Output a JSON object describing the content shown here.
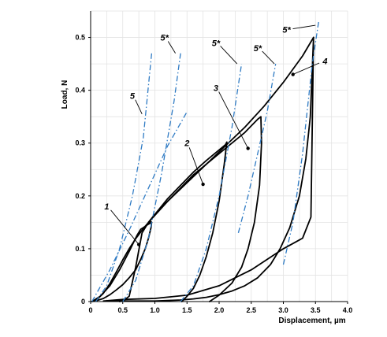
{
  "chart_data": {
    "type": "line",
    "xlabel": "Displacement, µm",
    "ylabel": "Load, N",
    "xlim": [
      0,
      4.0
    ],
    "ylim": [
      0,
      0.55
    ],
    "x_ticks": [
      "0",
      "0.5",
      "1.0",
      "1.5",
      "2.0",
      "2.5",
      "3.0",
      "3.5",
      "4.0"
    ],
    "x_tick_values": [
      0,
      0.5,
      1.0,
      1.5,
      2.0,
      2.5,
      3.0,
      3.5,
      4.0
    ],
    "y_ticks": [
      "0",
      "0.1",
      "0.2",
      "0.3",
      "0.4",
      "0.5"
    ],
    "y_tick_values": [
      0,
      0.1,
      0.2,
      0.3,
      0.4,
      0.5
    ],
    "grid": true,
    "colors": {
      "measured": "#000000",
      "model": "#2f7bc4"
    },
    "series": [
      {
        "kind": "curve",
        "x": [
          0.02,
          0.1,
          0.2,
          0.3,
          0.4,
          0.5,
          0.6,
          0.7,
          0.8,
          0.88,
          0.93,
          0.95,
          0.94,
          0.9,
          0.85,
          0.78,
          0.7,
          0.6,
          0.5,
          0.4,
          0.3,
          0.2,
          0.1,
          0.02
        ],
        "y": [
          0,
          0.004,
          0.016,
          0.034,
          0.056,
          0.079,
          0.1,
          0.119,
          0.135,
          0.147,
          0.152,
          0.15,
          0.14,
          0.12,
          0.1,
          0.08,
          0.06,
          0.045,
          0.032,
          0.022,
          0.013,
          0.006,
          0.002,
          0
        ]
      },
      {
        "kind": "curve",
        "x": [
          0.02,
          0.15,
          0.3,
          0.45,
          0.6,
          0.72,
          0.78,
          0.82,
          0.88,
          0.95
        ],
        "y": [
          0,
          0.01,
          0.03,
          0.06,
          0.095,
          0.125,
          0.137,
          0.14,
          0.145,
          0.15
        ]
      },
      {
        "kind": "curve",
        "x": [
          0.45,
          0.5,
          0.6,
          0.7,
          0.8,
          0.9,
          1.0,
          1.2,
          1.4,
          1.6,
          1.8,
          1.95,
          2.05,
          2.1,
          2.12,
          2.08,
          2.0,
          1.9,
          1.8,
          1.7,
          1.6,
          1.5,
          1.42
        ],
        "y": [
          0,
          0.001,
          0.01,
          0.065,
          0.13,
          0.15,
          0.165,
          0.195,
          0.22,
          0.245,
          0.267,
          0.282,
          0.292,
          0.297,
          0.302,
          0.26,
          0.19,
          0.13,
          0.085,
          0.05,
          0.025,
          0.01,
          0
        ]
      },
      {
        "kind": "curve",
        "x": [
          0.9,
          1.0,
          1.2,
          1.4,
          1.6,
          1.8,
          2.0,
          2.2,
          2.4,
          2.6,
          2.65,
          2.66,
          2.63,
          2.55,
          2.45,
          2.35,
          2.2,
          2.0,
          1.85
        ],
        "y": [
          0.15,
          0.165,
          0.19,
          0.215,
          0.24,
          0.26,
          0.28,
          0.3,
          0.32,
          0.345,
          0.35,
          0.3,
          0.22,
          0.15,
          0.1,
          0.065,
          0.035,
          0.012,
          0
        ]
      },
      {
        "kind": "curve",
        "x": [
          0.2,
          0.5,
          1.0,
          1.5,
          2.0,
          2.5,
          3.0,
          3.3,
          3.43,
          3.47,
          3.42,
          3.35,
          3.25,
          3.1,
          2.95,
          2.8,
          2.6,
          2.4,
          2.2,
          2.0,
          1.8,
          1.6,
          1.4,
          1.2,
          1.0,
          0.8,
          0.5,
          0.2
        ],
        "y": [
          0.001,
          0.004,
          0.006,
          0.012,
          0.03,
          0.06,
          0.1,
          0.12,
          0.16,
          0.5,
          0.35,
          0.27,
          0.2,
          0.14,
          0.1,
          0.07,
          0.045,
          0.03,
          0.02,
          0.013,
          0.008,
          0.005,
          0.003,
          0.002,
          0.001,
          0.001,
          0.001,
          0.001
        ]
      },
      {
        "kind": "curve",
        "x": [
          0.9,
          1.2,
          1.5,
          1.8,
          2.1,
          2.4,
          2.7,
          3.0,
          3.3,
          3.47
        ],
        "y": [
          0.15,
          0.19,
          0.225,
          0.26,
          0.295,
          0.33,
          0.37,
          0.415,
          0.465,
          0.5
        ]
      },
      {
        "kind": "dashdot",
        "x": [
          0.02,
          0.3,
          0.6,
          0.9,
          1.2,
          1.49
        ],
        "y": [
          0,
          0.06,
          0.135,
          0.215,
          0.295,
          0.357
        ]
      },
      {
        "kind": "dashdot",
        "x": [
          0.08,
          0.25,
          0.45,
          0.65,
          0.82,
          0.95
        ],
        "y": [
          0,
          0.03,
          0.1,
          0.2,
          0.31,
          0.47
        ]
      },
      {
        "kind": "dashdot",
        "x": [
          0.5,
          0.7,
          0.9,
          1.1,
          1.3,
          1.4
        ],
        "y": [
          0,
          0.04,
          0.12,
          0.24,
          0.38,
          0.47
        ]
      },
      {
        "kind": "dashdot",
        "x": [
          1.4,
          1.6,
          1.8,
          2.0,
          2.2,
          2.35
        ],
        "y": [
          0,
          0.03,
          0.1,
          0.2,
          0.33,
          0.45
        ]
      },
      {
        "kind": "dashdot",
        "x": [
          2.3,
          2.45,
          2.6,
          2.75,
          2.88
        ],
        "y": [
          0.13,
          0.2,
          0.28,
          0.36,
          0.45
        ]
      },
      {
        "kind": "dashdot",
        "x": [
          3.0,
          3.15,
          3.3,
          3.45,
          3.55
        ],
        "y": [
          0.07,
          0.15,
          0.28,
          0.45,
          0.53
        ]
      }
    ],
    "annotations": [
      {
        "label": "1",
        "x": 0.25,
        "y": 0.18,
        "target_x": 0.75,
        "target_y": 0.108,
        "dot": true
      },
      {
        "label": "2",
        "x": 1.5,
        "y": 0.3,
        "target_x": 1.75,
        "target_y": 0.222,
        "dot": true
      },
      {
        "label": "3",
        "x": 1.95,
        "y": 0.405,
        "target_x": 2.45,
        "target_y": 0.29,
        "dot": true
      },
      {
        "label": "4",
        "x": 3.65,
        "y": 0.455,
        "target_x": 3.15,
        "target_y": 0.43,
        "dot": true
      },
      {
        "label": "5",
        "x": 0.65,
        "y": 0.39,
        "target_x": 0.8,
        "target_y": 0.355,
        "dot": false
      },
      {
        "label": "5*",
        "x": 1.15,
        "y": 0.5,
        "target_x": 1.32,
        "target_y": 0.47,
        "dot": false
      },
      {
        "label": "5*",
        "x": 1.95,
        "y": 0.49,
        "target_x": 2.28,
        "target_y": 0.45,
        "dot": false
      },
      {
        "label": "5*",
        "x": 2.6,
        "y": 0.48,
        "target_x": 2.86,
        "target_y": 0.45,
        "dot": false
      },
      {
        "label": "5*",
        "x": 3.05,
        "y": 0.515,
        "target_x": 3.5,
        "target_y": 0.523,
        "dot": false
      }
    ]
  }
}
